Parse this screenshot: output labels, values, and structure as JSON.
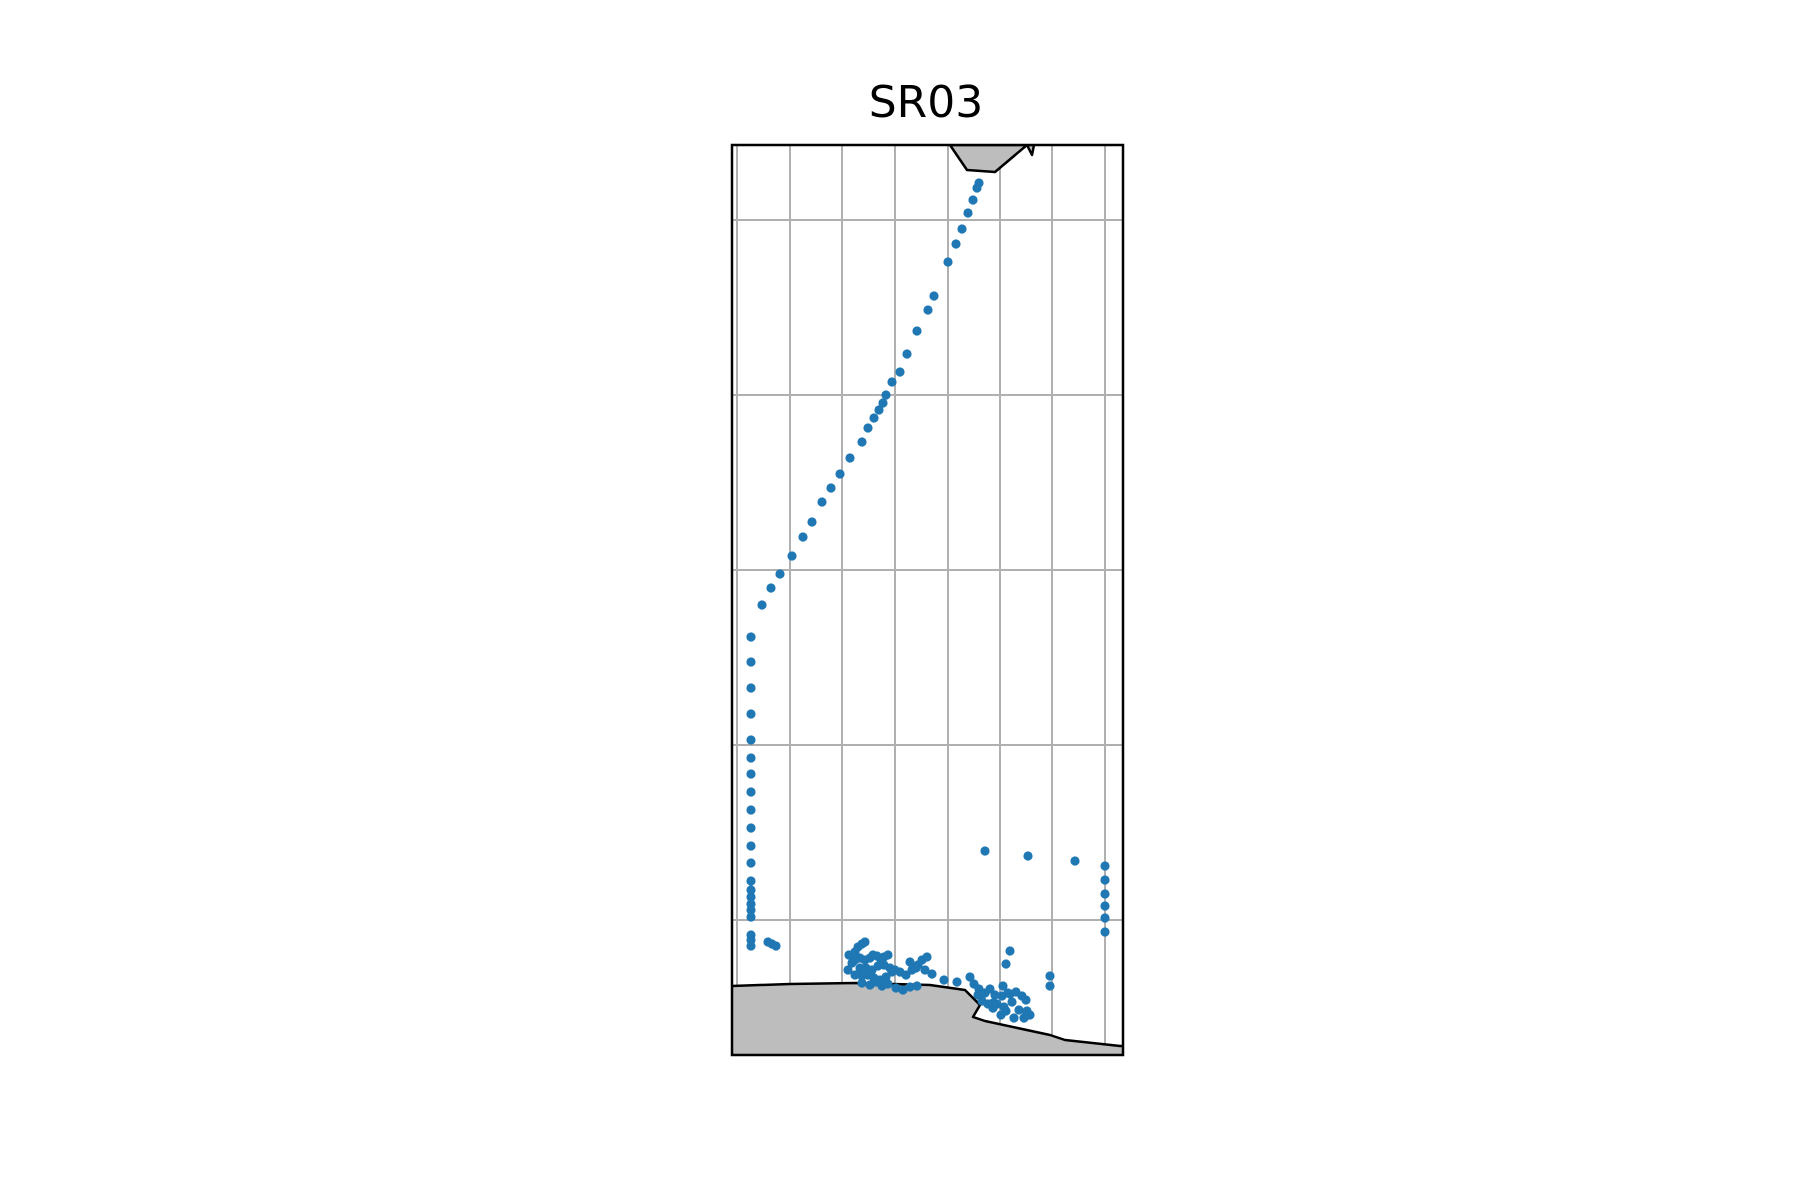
{
  "map": {
    "title": "SR03",
    "colors": {
      "station": "#1f77b4",
      "land": "#bdbdbd",
      "coastline": "#000000",
      "gridline": "#b0b0b0",
      "frame": "#000000",
      "background": "#ffffff"
    },
    "gridlines": true,
    "feature": "section-stations",
    "land_features": [
      "tasmania-landmass",
      "antarctica-landmass"
    ]
  }
}
